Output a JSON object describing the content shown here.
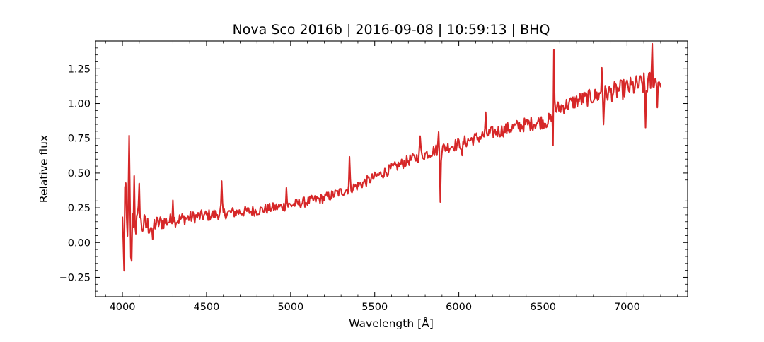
{
  "chart_data": {
    "type": "line",
    "title": "Nova Sco 2016b | 2016-09-08 | 10:59:13 | BHQ",
    "xlabel": "Wavelength [Å]",
    "ylabel": "Relative flux",
    "xlim": [
      3840,
      7360
    ],
    "ylim": [
      -0.39,
      1.45
    ],
    "x_ticks": [
      4000,
      4500,
      5000,
      5500,
      6000,
      6500,
      7000
    ],
    "x_tick_labels": [
      "4000",
      "4500",
      "5000",
      "5500",
      "6000",
      "6500",
      "7000"
    ],
    "y_ticks": [
      -0.25,
      0.0,
      0.25,
      0.5,
      0.75,
      1.0,
      1.25
    ],
    "y_tick_labels": [
      "−0.25",
      "0.00",
      "0.25",
      "0.50",
      "0.75",
      "1.00",
      "1.25"
    ],
    "x_minor_step": 100,
    "y_minor_step": 0.05,
    "grid": false,
    "legend": "none",
    "series": [
      {
        "color": "#d62728",
        "x_start": 4000,
        "x_end": 7200,
        "x_step": 5,
        "continuum": [
          [
            4000,
            0.14
          ],
          [
            4150,
            0.12
          ],
          [
            4250,
            0.15
          ],
          [
            4400,
            0.18
          ],
          [
            4600,
            0.21
          ],
          [
            4800,
            0.23
          ],
          [
            5000,
            0.27
          ],
          [
            5200,
            0.32
          ],
          [
            5400,
            0.41
          ],
          [
            5500,
            0.47
          ],
          [
            5600,
            0.53
          ],
          [
            5700,
            0.59
          ],
          [
            5850,
            0.66
          ],
          [
            6000,
            0.71
          ],
          [
            6200,
            0.79
          ],
          [
            6400,
            0.85
          ],
          [
            6550,
            0.88
          ],
          [
            6560,
            0.95
          ],
          [
            6700,
            1.02
          ],
          [
            6900,
            1.08
          ],
          [
            7100,
            1.14
          ],
          [
            7200,
            1.17
          ]
        ],
        "noise_amplitude": [
          [
            4000,
            0.2
          ],
          [
            4100,
            0.14
          ],
          [
            4200,
            0.08
          ],
          [
            4400,
            0.06
          ],
          [
            4800,
            0.05
          ],
          [
            5500,
            0.05
          ],
          [
            6000,
            0.06
          ],
          [
            6500,
            0.07
          ],
          [
            6800,
            0.08
          ],
          [
            7000,
            0.1
          ],
          [
            7200,
            0.12
          ]
        ],
        "features": [
          {
            "x": 4010,
            "dy": -0.38
          },
          {
            "x": 4018,
            "dy": 0.36
          },
          {
            "x": 4040,
            "dy": 0.58
          },
          {
            "x": 4052,
            "dy": -0.45
          },
          {
            "x": 4070,
            "dy": 0.33
          },
          {
            "x": 4100,
            "dy": 0.38
          },
          {
            "x": 4180,
            "dy": -0.17
          },
          {
            "x": 4300,
            "dy": 0.17
          },
          {
            "x": 4590,
            "dy": 0.21
          },
          {
            "x": 4975,
            "dy": 0.13
          },
          {
            "x": 5350,
            "dy": 0.22
          },
          {
            "x": 5770,
            "dy": 0.15
          },
          {
            "x": 5890,
            "dy": -0.34
          },
          {
            "x": 5880,
            "dy": 0.11
          },
          {
            "x": 6020,
            "dy": -0.13
          },
          {
            "x": 6160,
            "dy": 0.12
          },
          {
            "x": 6565,
            "dy": 0.45
          },
          {
            "x": 6560,
            "dy": -0.28
          },
          {
            "x": 6850,
            "dy": 0.2
          },
          {
            "x": 6860,
            "dy": -0.19
          },
          {
            "x": 7110,
            "dy": -0.31
          },
          {
            "x": 7150,
            "dy": 0.24
          },
          {
            "x": 7180,
            "dy": -0.12
          }
        ]
      }
    ]
  }
}
